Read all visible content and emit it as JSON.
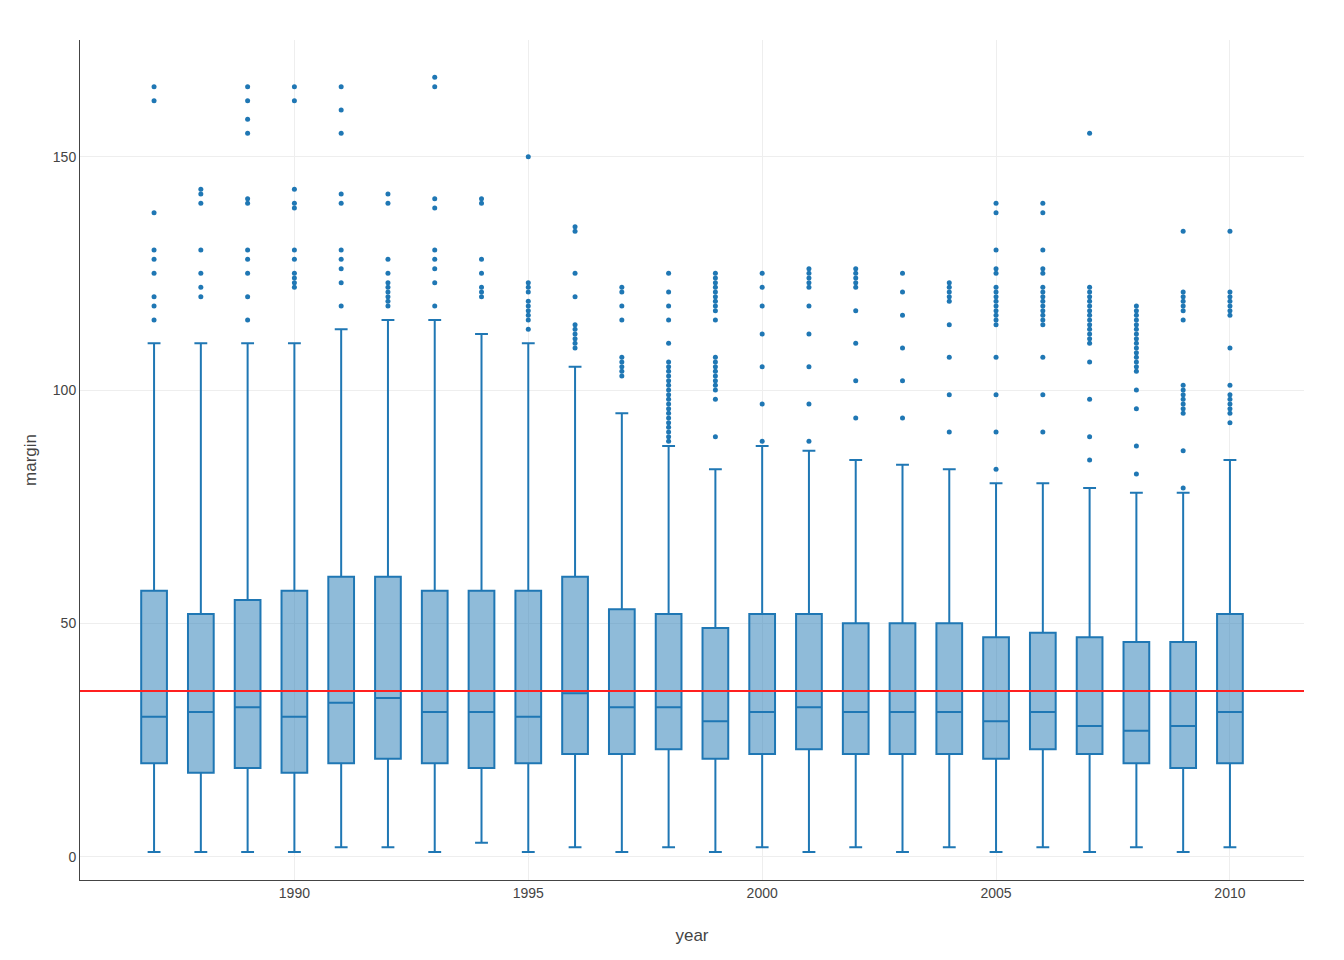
{
  "chart_data": {
    "type": "box",
    "categories": [
      null,
      null,
      null,
      "1990",
      null,
      null,
      null,
      null,
      "1995",
      null,
      null,
      null,
      null,
      "2000",
      null,
      null,
      null,
      null,
      "2005",
      null,
      null,
      null,
      null,
      "2010"
    ],
    "q1": [
      20,
      18,
      19,
      18,
      20,
      21,
      20,
      19,
      20,
      22,
      22,
      23,
      21,
      22,
      23,
      22,
      22,
      22,
      21,
      23,
      22,
      20,
      19,
      20
    ],
    "median": [
      30,
      31,
      32,
      30,
      33,
      34,
      31,
      31,
      30,
      35,
      32,
      32,
      29,
      31,
      32,
      31,
      31,
      31,
      29,
      31,
      28,
      27,
      28,
      31
    ],
    "q3": [
      57,
      52,
      55,
      57,
      60,
      60,
      57,
      57,
      57,
      60,
      53,
      52,
      49,
      52,
      52,
      50,
      50,
      50,
      47,
      48,
      47,
      46,
      46,
      52
    ],
    "lower_whisker": [
      1,
      1,
      1,
      1,
      2,
      2,
      1,
      3,
      1,
      2,
      1,
      2,
      1,
      2,
      1,
      2,
      1,
      2,
      1,
      2,
      1,
      2,
      1,
      2
    ],
    "upper_whisker": [
      110,
      110,
      110,
      110,
      113,
      115,
      115,
      112,
      110,
      105,
      95,
      88,
      83,
      88,
      87,
      85,
      84,
      83,
      80,
      80,
      79,
      78,
      78,
      85
    ],
    "outliers": [
      [
        115,
        118,
        120,
        125,
        128,
        130,
        138,
        162,
        165
      ],
      [
        120,
        122,
        125,
        130,
        140,
        142,
        143
      ],
      [
        115,
        120,
        125,
        128,
        130,
        140,
        141,
        155,
        158,
        162,
        165
      ],
      [
        122,
        123,
        124,
        125,
        128,
        130,
        139,
        140,
        143,
        162,
        165
      ],
      [
        118,
        123,
        126,
        128,
        130,
        140,
        142,
        155,
        160,
        165
      ],
      [
        118,
        119,
        120,
        121,
        122,
        123,
        125,
        128,
        140,
        142
      ],
      [
        118,
        123,
        126,
        128,
        130,
        139,
        141,
        165,
        167
      ],
      [
        120,
        121,
        122,
        125,
        128,
        140,
        141
      ],
      [
        113,
        115,
        116,
        117,
        118,
        119,
        121,
        122,
        123,
        150
      ],
      [
        109,
        110,
        111,
        112,
        113,
        114,
        120,
        125,
        134,
        135
      ],
      [
        103,
        104,
        105,
        106,
        107,
        115,
        118,
        121,
        122
      ],
      [
        89,
        90,
        91,
        92,
        93,
        94,
        95,
        96,
        97,
        98,
        99,
        100,
        101,
        102,
        103,
        104,
        105,
        106,
        110,
        115,
        118,
        121,
        125
      ],
      [
        90,
        98,
        100,
        101,
        102,
        103,
        104,
        105,
        106,
        107,
        115,
        117,
        118,
        119,
        120,
        121,
        122,
        123,
        124,
        125
      ],
      [
        89,
        97,
        105,
        112,
        118,
        122,
        125
      ],
      [
        89,
        97,
        105,
        112,
        118,
        122,
        123,
        124,
        125,
        126
      ],
      [
        94,
        102,
        110,
        117,
        122,
        123,
        124,
        125,
        126
      ],
      [
        94,
        102,
        109,
        116,
        121,
        125
      ],
      [
        91,
        99,
        107,
        114,
        119,
        120,
        121,
        122,
        123
      ],
      [
        83,
        91,
        99,
        107,
        114,
        115,
        116,
        117,
        118,
        119,
        120,
        121,
        122,
        125,
        126,
        130,
        138,
        140
      ],
      [
        91,
        99,
        107,
        114,
        115,
        116,
        117,
        118,
        119,
        120,
        121,
        122,
        125,
        126,
        130,
        138,
        140
      ],
      [
        85,
        90,
        98,
        106,
        110,
        111,
        112,
        113,
        114,
        115,
        116,
        117,
        118,
        119,
        120,
        121,
        122,
        155
      ],
      [
        82,
        88,
        96,
        100,
        104,
        105,
        106,
        107,
        108,
        109,
        110,
        111,
        112,
        113,
        114,
        115,
        116,
        117,
        118
      ],
      [
        79,
        87,
        95,
        96,
        97,
        98,
        99,
        100,
        101,
        115,
        117,
        118,
        119,
        120,
        121,
        134
      ],
      [
        93,
        95,
        96,
        97,
        98,
        99,
        101,
        109,
        116,
        117,
        118,
        119,
        120,
        121,
        134
      ]
    ],
    "reference_line": {
      "value": 35.5,
      "color": "#FF2020"
    },
    "xlabel": "year",
    "ylabel": "margin",
    "ylim": [
      -5,
      175
    ],
    "yticks": [
      0,
      50,
      100,
      150
    ],
    "grid": true
  }
}
